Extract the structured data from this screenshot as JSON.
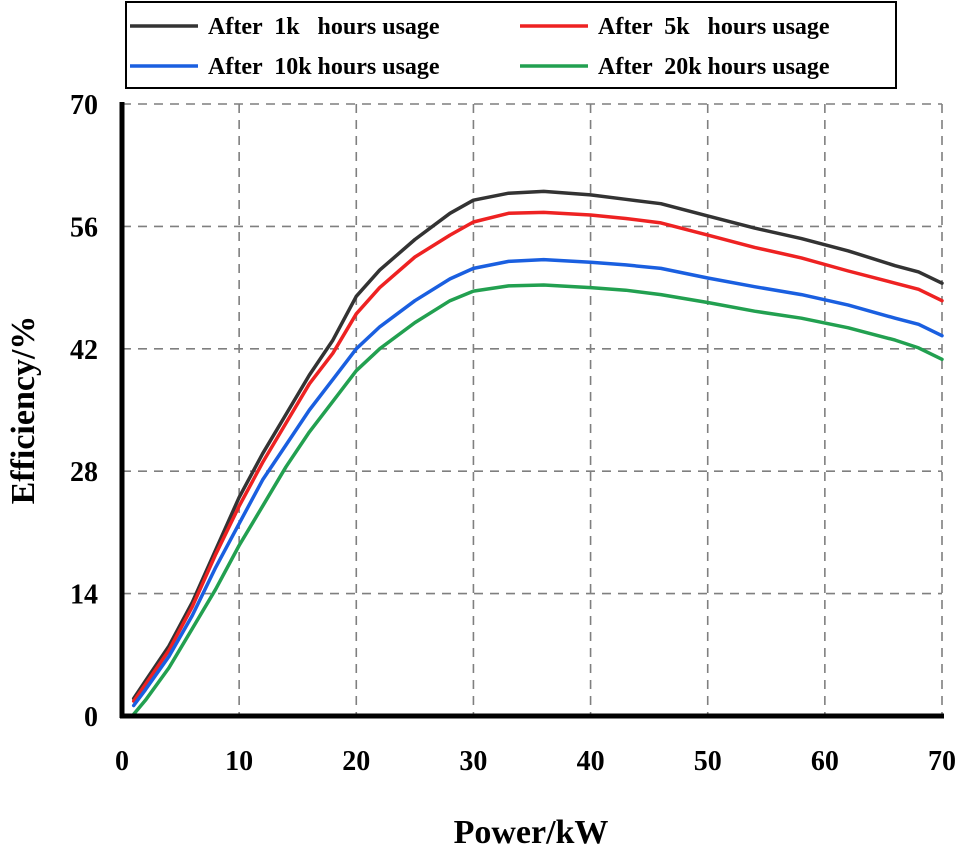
{
  "chart_data": {
    "type": "line",
    "title": "",
    "xlabel": "Power/kW",
    "ylabel": "Efficiency/%",
    "xlim": [
      0,
      70
    ],
    "ylim": [
      0,
      70
    ],
    "xticks": [
      0,
      10,
      20,
      30,
      40,
      50,
      60,
      70
    ],
    "yticks": [
      0,
      14,
      28,
      42,
      56,
      70
    ],
    "grid": true,
    "legend_position": "top",
    "x": [
      1,
      2,
      4,
      6,
      8,
      10,
      12,
      14,
      16,
      18,
      20,
      22,
      25,
      28,
      30,
      33,
      36,
      40,
      43,
      46,
      50,
      54,
      58,
      62,
      66,
      68,
      70
    ],
    "series": [
      {
        "name": "After  1k   hours usage",
        "color": "#333333",
        "values": [
          2,
          4,
          8,
          13,
          19,
          25,
          30,
          34.5,
          39,
          43,
          48,
          51,
          54.5,
          57.5,
          59,
          59.8,
          60,
          59.6,
          59.1,
          58.6,
          57.2,
          55.8,
          54.6,
          53.2,
          51.5,
          50.8,
          49.5
        ]
      },
      {
        "name": "After  5k   hours usage",
        "color": "#ee2222",
        "values": [
          1.7,
          3.6,
          7.5,
          12.5,
          18.5,
          24,
          29,
          33.5,
          38,
          41.5,
          46,
          49,
          52.5,
          55,
          56.5,
          57.5,
          57.6,
          57.3,
          56.9,
          56.4,
          55,
          53.6,
          52.4,
          50.9,
          49.5,
          48.8,
          47.5
        ]
      },
      {
        "name": "After  10k hours usage",
        "color": "#1a5fe0",
        "values": [
          1.2,
          3,
          6.8,
          11.5,
          17,
          22,
          27,
          31,
          35,
          38.5,
          42,
          44.5,
          47.5,
          50,
          51.2,
          52,
          52.2,
          51.9,
          51.6,
          51.2,
          50.1,
          49.1,
          48.2,
          47,
          45.5,
          44.8,
          43.5
        ]
      },
      {
        "name": "After  20k hours usage",
        "color": "#22a050",
        "values": [
          0.2,
          1.8,
          5.5,
          10,
          14.5,
          19.5,
          24,
          28.5,
          32.5,
          36,
          39.5,
          42,
          45,
          47.5,
          48.6,
          49.2,
          49.3,
          49,
          48.7,
          48.2,
          47.3,
          46.3,
          45.5,
          44.4,
          43,
          42.1,
          40.8
        ]
      }
    ]
  }
}
